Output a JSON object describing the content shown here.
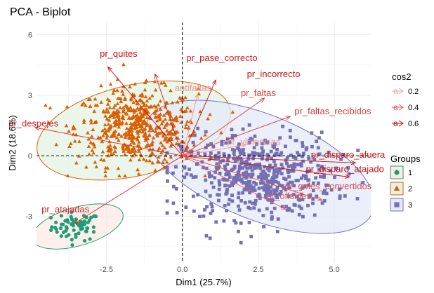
{
  "chart_data": {
    "type": "scatter",
    "title": "PCA - Biplot",
    "xlabel": "Dim1 (25.7%)",
    "ylabel": "Dim2 (18.6%)",
    "xlim": [
      -4.8,
      6.2
    ],
    "ylim": [
      -5.3,
      6.6
    ],
    "xticks": [
      -2.5,
      0.0,
      2.5,
      5.0
    ],
    "xtick_labels": [
      "-2.5",
      "0.0",
      "2.5",
      "5.0"
    ],
    "yticks": [
      -3,
      0,
      3,
      6
    ],
    "ytick_labels": [
      "-3",
      "0",
      "3",
      "6"
    ],
    "grid": true,
    "reference_lines": {
      "x": 0,
      "y": 0,
      "style": "dashed"
    },
    "groups_legend": {
      "title": "Groups",
      "placement": "right",
      "entries": [
        {
          "label": "1",
          "color": "#1b9e77",
          "shape": "circle"
        },
        {
          "label": "2",
          "color": "#d95f02",
          "shape": "triangle"
        },
        {
          "label": "3",
          "color": "#7570b3",
          "shape": "square"
        }
      ]
    },
    "cos2_legend": {
      "title": "cos2",
      "placement": "top-right",
      "entries": [
        {
          "label": "0.2",
          "color": "#f4a6a6"
        },
        {
          "label": "0.4",
          "color": "#e8505b"
        },
        {
          "label": "0.6",
          "color": "#cc0000"
        }
      ]
    },
    "groups": [
      {
        "name": "1",
        "color": "#1b9e77",
        "fill": "#fde9e5",
        "center": [
          -3.5,
          -3.5
        ],
        "spread": [
          0.4,
          0.35
        ],
        "ellipse": {
          "cx": -3.45,
          "cy": -3.5,
          "rx": 1.55,
          "ry": 0.95,
          "angle": 16
        },
        "n": 65,
        "x_range": [
          -4.5,
          -2.5
        ],
        "y_range": [
          -5.0,
          -2.3
        ]
      },
      {
        "name": "2",
        "color": "#d95f02",
        "fill": "#e3f3e3",
        "center": [
          -1.5,
          1.4
        ],
        "spread": [
          1.0,
          0.95
        ],
        "ellipse": {
          "cx": -1.6,
          "cy": 1.25,
          "rx": 3.25,
          "ry": 2.25,
          "angle": 13
        },
        "n": 560,
        "x_range": [
          -4.5,
          2.5
        ],
        "y_range": [
          -1.0,
          5.9
        ]
      },
      {
        "name": "3",
        "color": "#7570b3",
        "fill": "#e4eaf8",
        "center": [
          2.5,
          -1.0
        ],
        "spread": [
          1.25,
          1.05
        ],
        "ellipse": {
          "cx": 2.55,
          "cy": -0.55,
          "rx": 4.0,
          "ry": 2.6,
          "angle": -22
        },
        "n": 540,
        "x_range": [
          -0.5,
          6.0
        ],
        "y_range": [
          -5.0,
          3.2
        ]
      }
    ],
    "variables": [
      {
        "name": "pr_quites",
        "x": -2.45,
        "y": 4.4,
        "cos2": 0.62,
        "lx": -2.1,
        "ly": 4.9
      },
      {
        "name": "pr_pase_correcto",
        "x": -0.9,
        "y": 4.05,
        "cos2": 0.58,
        "lx": 1.3,
        "ly": 4.7
      },
      {
        "name": "pr_incorrecto",
        "x": 1.1,
        "y": 3.75,
        "cos2": 0.62,
        "lx": 3.0,
        "ly": 3.9
      },
      {
        "name": "antifaltas",
        "x": 0.5,
        "y": 3.05,
        "cos2": 0.25,
        "lx": 0.35,
        "ly": 3.2
      },
      {
        "name": "pr_faltas",
        "x": 2.7,
        "y": 2.85,
        "cos2": 0.48,
        "lx": 2.5,
        "ly": 2.95
      },
      {
        "name": "pr_faltas_recibidos",
        "x": 3.55,
        "y": 1.95,
        "cos2": 0.5,
        "lx": 4.95,
        "ly": 2.05
      },
      {
        "name": "pr_despejes",
        "x": -4.85,
        "y": 1.4,
        "cos2": 0.55,
        "lx": -4.9,
        "ly": 1.45
      },
      {
        "name": "pr_violencias",
        "x": 2.1,
        "y": 0.55,
        "cos2": 0.25,
        "lx": 2.35,
        "ly": 0.55
      },
      {
        "name": "pr_disparo_afuera",
        "x": 5.7,
        "y": -0.35,
        "cos2": 0.62,
        "lx": 5.45,
        "ly": -0.1
      },
      {
        "name": "pr_disparo_atajado",
        "x": 5.5,
        "y": -1.05,
        "cos2": 0.62,
        "lx": 5.35,
        "ly": -0.8
      },
      {
        "name": "pr_goles_convertidos",
        "x": 4.6,
        "y": -2.2,
        "cos2": 0.45,
        "lx": 4.8,
        "ly": -1.65
      },
      {
        "name": "pr_offsides",
        "x": 3.4,
        "y": -2.65,
        "cos2": 0.4,
        "lx": 3.5,
        "ly": -2.15
      },
      {
        "name": "pr_atajadas",
        "x": -3.55,
        "y": -3.35,
        "cos2": 0.55,
        "lx": -3.85,
        "ly": -2.8
      }
    ]
  }
}
